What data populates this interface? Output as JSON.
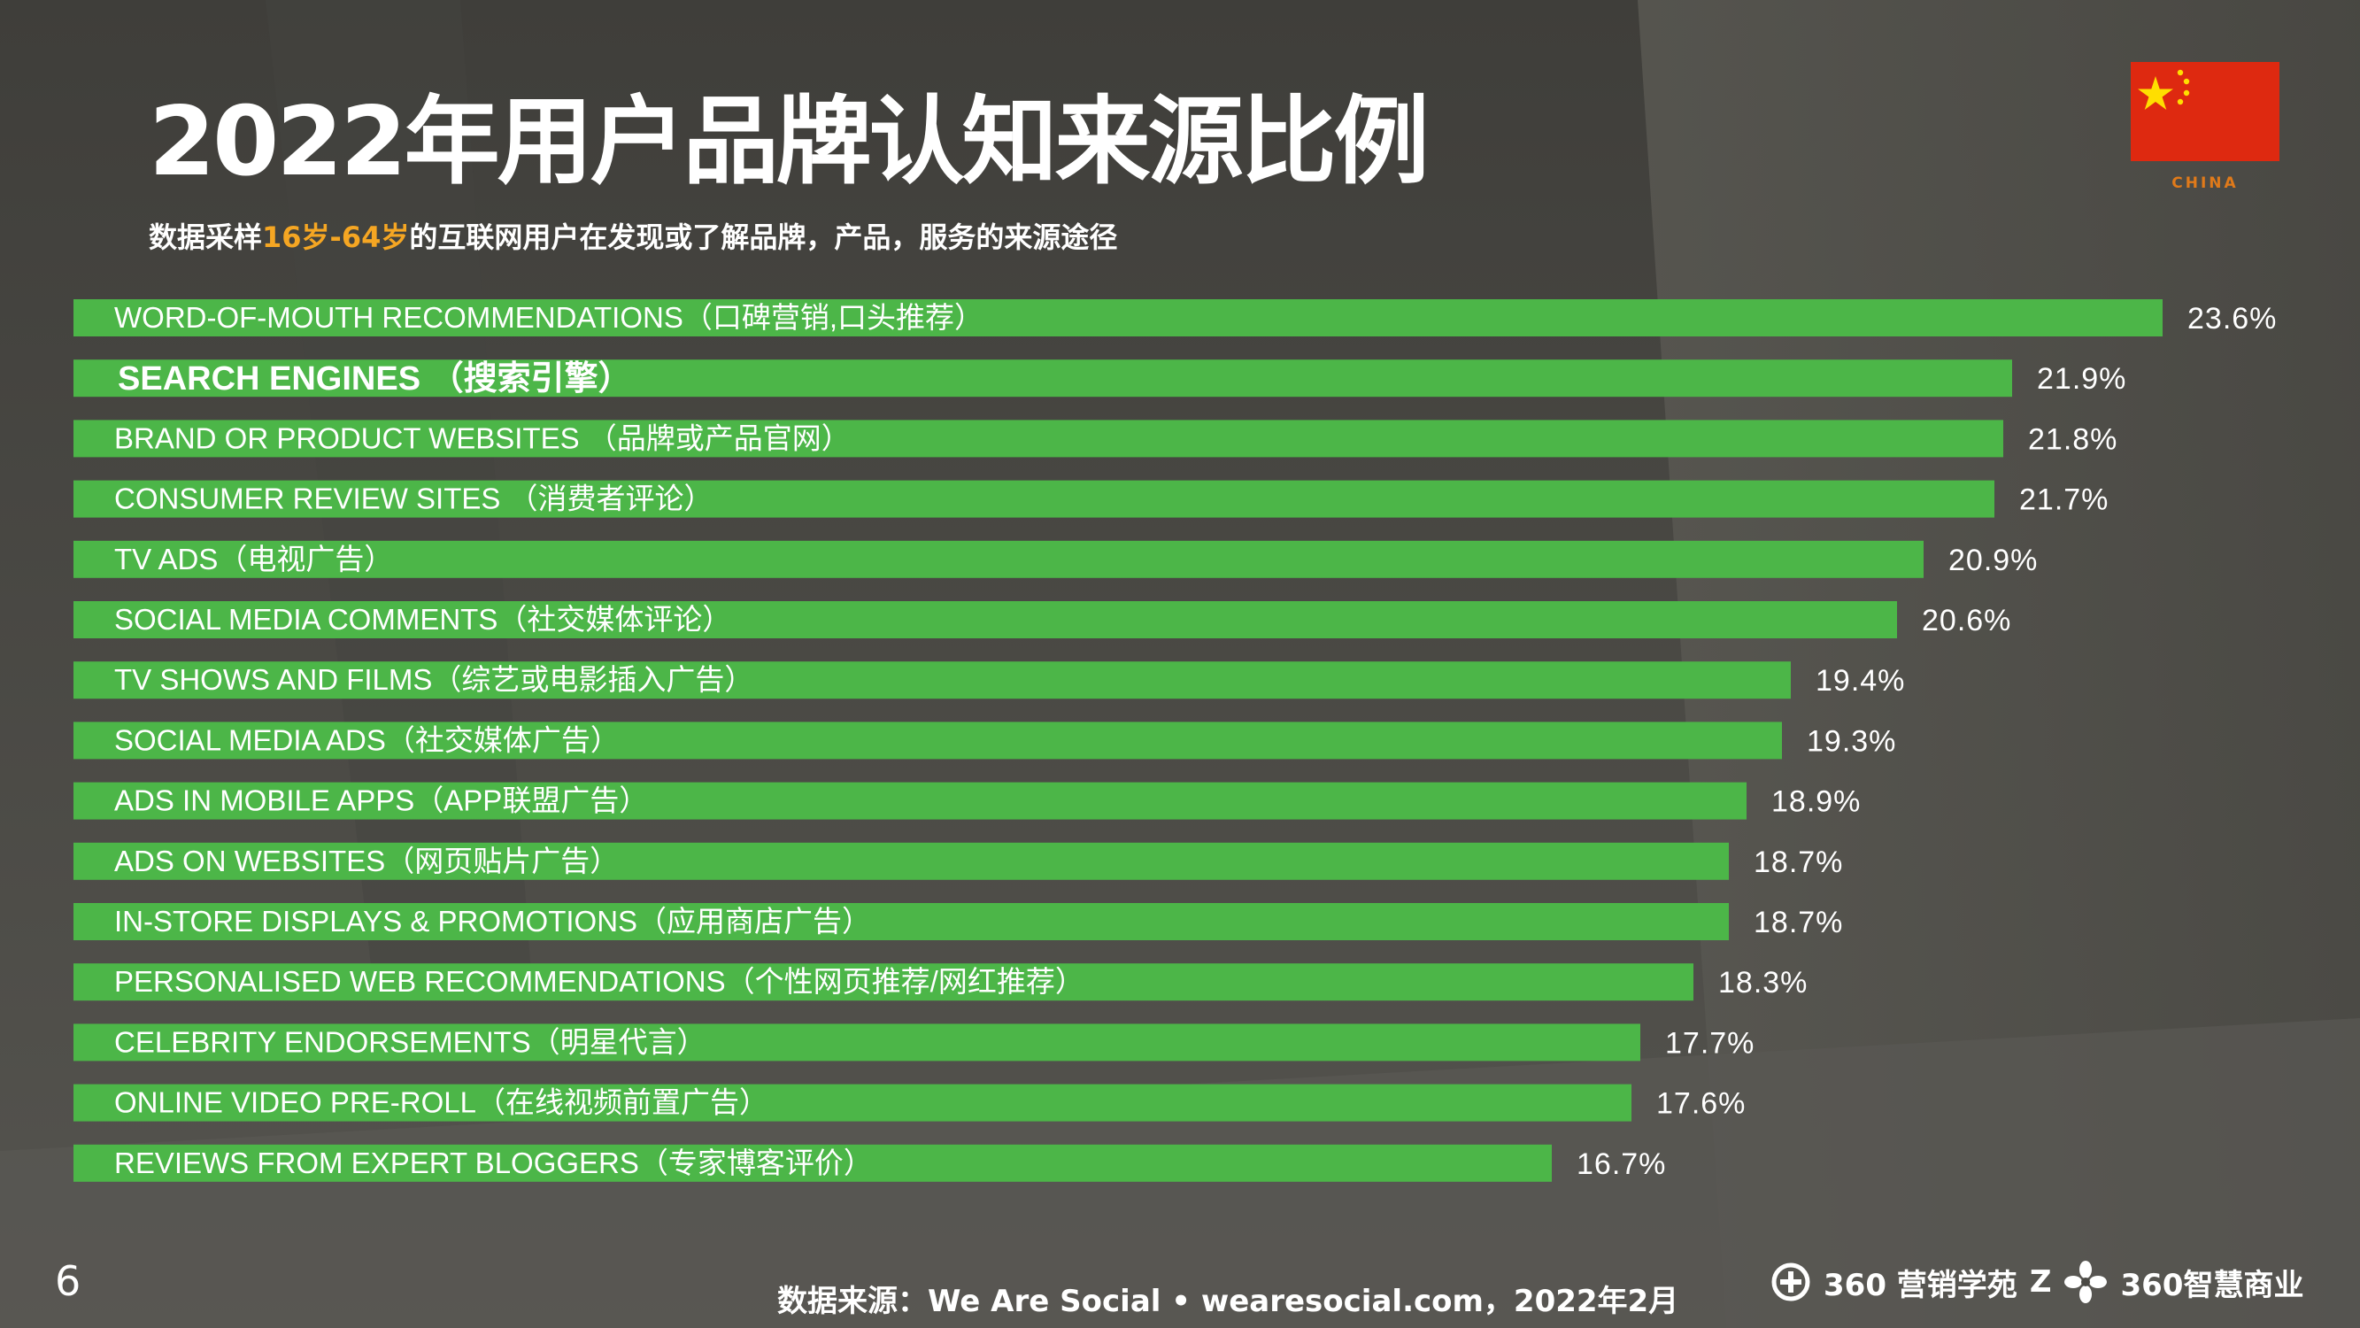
{
  "title": "2022年用户品牌认知来源比例",
  "subtitle": {
    "prefix": "数据采样",
    "highlight": "16岁-64岁",
    "suffix": "的互联网用户在发现或了解品牌，产品，服务的来源途径"
  },
  "flag": {
    "label": "CHINA"
  },
  "page_number": "6",
  "source": "数据来源：We Are Social • wearesocial.com，2022年2月",
  "logos": {
    "brand1": "360 营销学苑",
    "brand2_mark": "Z",
    "brand2": "360智慧商业"
  },
  "colors": {
    "bar": "#4cb648",
    "accent": "#f5a623",
    "flag": "#de2910",
    "star": "#ffde00",
    "text": "#ffffff"
  },
  "chart_data": {
    "type": "bar",
    "orientation": "horizontal",
    "value_suffix": "%",
    "xlim": [
      0,
      25
    ],
    "grid": false,
    "categories": [
      "WORD-OF-MOUTH RECOMMENDATIONS（口碑营销,口头推荐）",
      "SEARCH ENGINES （搜索引擎）",
      "BRAND OR PRODUCT WEBSITES （品牌或产品官网）",
      "CONSUMER REVIEW SITES （消费者评论）",
      "TV ADS（电视广告）",
      "SOCIAL MEDIA COMMENTS（社交媒体评论）",
      "TV SHOWS AND FILMS（综艺或电影插入广告）",
      "SOCIAL MEDIA ADS（社交媒体广告）",
      "ADS IN MOBILE APPS（APP联盟广告）",
      "ADS ON WEBSITES（网页贴片广告）",
      "IN-STORE DISPLAYS & PROMOTIONS（应用商店广告）",
      "PERSONALISED WEB RECOMMENDATIONS（个性网页推荐/网红推荐）",
      "CELEBRITY ENDORSEMENTS（明星代言）",
      "ONLINE VIDEO PRE-ROLL（在线视频前置广告）",
      "REVIEWS FROM EXPERT BLOGGERS（专家博客评价）"
    ],
    "values": [
      23.6,
      21.9,
      21.8,
      21.7,
      20.9,
      20.6,
      19.4,
      19.3,
      18.9,
      18.7,
      18.7,
      18.3,
      17.7,
      17.6,
      16.7
    ],
    "labels": [
      "23.6%",
      "21.9%",
      "21.8%",
      "21.7%",
      "20.9%",
      "20.6%",
      "19.4%",
      "19.3%",
      "18.9%",
      "18.7%",
      "18.7%",
      "18.3%",
      "17.7%",
      "17.6%",
      "16.7%"
    ],
    "emphasis_index": 1
  }
}
